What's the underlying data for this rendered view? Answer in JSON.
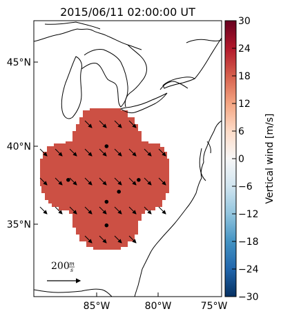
{
  "title": "2015/06/11 02:00:00 UT",
  "lat_labels": [
    "45°N",
    "40°N",
    "35°N"
  ],
  "lon_labels": [
    "85°W",
    "80°W",
    "75°W"
  ],
  "colorbar": {
    "label": "Vertical wind [m/s]",
    "ticks": [
      "30",
      "24",
      "18",
      "12",
      "6",
      "0",
      "−6",
      "−12",
      "−18",
      "−24",
      "−30"
    ],
    "range": [
      -30,
      30
    ],
    "colormap": "RdBu_r",
    "colors_top_to_bottom": [
      "#67001f",
      "#b2182b",
      "#d6604d",
      "#f4a582",
      "#fddbc7",
      "#f7f7f7",
      "#d1e5f0",
      "#92c5de",
      "#4393c3",
      "#2166ac",
      "#053061"
    ]
  },
  "field": {
    "value_mps": 18,
    "color": "#cc5044",
    "description_note": ""
  },
  "scale_bar": {
    "value": "200",
    "unit_num": "m",
    "unit_den": "s"
  },
  "stations": [
    {
      "lon": -84.2,
      "lat": 40.0
    },
    {
      "lon": -87.3,
      "lat": 38.0
    },
    {
      "lon": -81.6,
      "lat": 38.0
    },
    {
      "lon": -83.2,
      "lat": 37.3
    },
    {
      "lon": -84.2,
      "lat": 36.7
    },
    {
      "lon": -84.2,
      "lat": 35.3
    }
  ],
  "wind_arrow_direction": "southeast",
  "map_extent": {
    "lon": [
      -90,
      -75
    ],
    "lat": [
      30.5,
      47.5
    ]
  }
}
